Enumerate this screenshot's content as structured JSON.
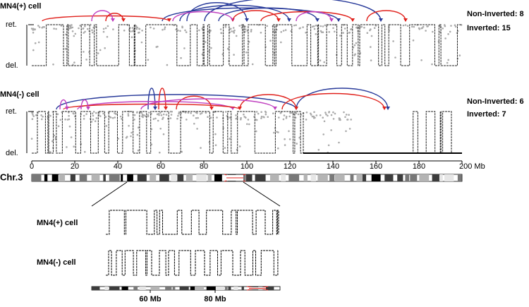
{
  "panels": [
    {
      "label": "MN4(+) cell",
      "counts": [
        "Non-Inverted: 8",
        "Inverted: 15"
      ],
      "y_labels": [
        "ret.",
        "del."
      ]
    },
    {
      "label": "MN4(-) cell",
      "counts": [
        "Non-Inverted: 6",
        "Inverted: 7"
      ],
      "y_labels": [
        "ret.",
        "del."
      ]
    }
  ],
  "axis": {
    "ticks": [
      0,
      20,
      40,
      60,
      80,
      100,
      120,
      140,
      160,
      {
        "value": 180,
        "label": "180"
      },
      {
        "value": 200,
        "label": "200 Mb"
      }
    ]
  },
  "chromosome": "Chr.3",
  "zoom": {
    "labels": [
      "MN4(+) cell",
      "MN4(-) cell"
    ],
    "ticks": [
      {
        "value": 60,
        "label": "60 Mb"
      },
      {
        "value": 80,
        "label": "80 Mb"
      }
    ]
  }
}
